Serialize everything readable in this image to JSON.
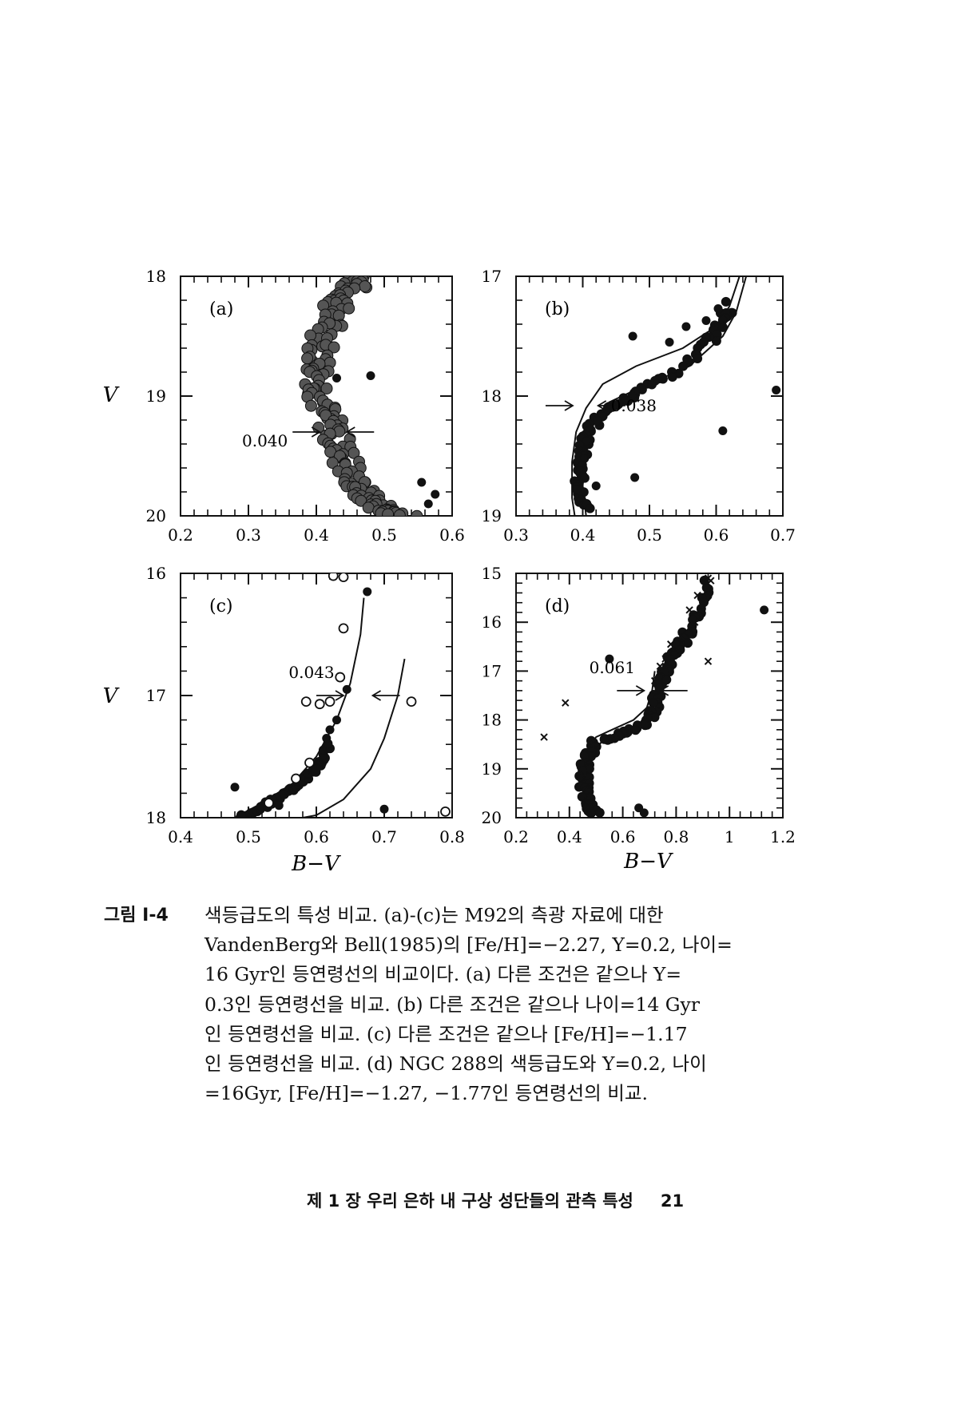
{
  "figure": {
    "v_label": "V",
    "bv_label": "B−V",
    "panels": [
      {
        "id": "a",
        "tag": "(a)",
        "xlim": [
          0.2,
          0.6
        ],
        "ylim": [
          20,
          18
        ],
        "xticks": [
          "0.2",
          "0.3",
          "0.4",
          "0.5",
          "0.6"
        ],
        "yticks": [
          "18",
          "19",
          "20"
        ],
        "width_label": "0.040",
        "width_at_v": 19.3,
        "width_left": 0.405,
        "width_right": 0.445,
        "ridge": [
          [
            0.47,
            18.0
          ],
          [
            0.45,
            18.1
          ],
          [
            0.43,
            18.25
          ],
          [
            0.415,
            18.45
          ],
          [
            0.405,
            18.7
          ],
          [
            0.405,
            18.9
          ],
          [
            0.41,
            19.1
          ],
          [
            0.425,
            19.3
          ],
          [
            0.44,
            19.5
          ],
          [
            0.455,
            19.7
          ],
          [
            0.475,
            19.85
          ],
          [
            0.5,
            19.95
          ],
          [
            0.53,
            20.0
          ]
        ],
        "ridge_halfwidth": 0.022,
        "outliers_filled": [
          [
            0.43,
            18.85
          ],
          [
            0.48,
            18.83
          ],
          [
            0.555,
            19.72
          ],
          [
            0.575,
            19.82
          ],
          [
            0.565,
            19.9
          ]
        ],
        "outliers_open": [],
        "crosses": [],
        "isochrones": []
      },
      {
        "id": "b",
        "tag": "(b)",
        "xlim": [
          0.3,
          0.7
        ],
        "ylim": [
          19,
          17
        ],
        "xticks": [
          "0.3",
          "0.4",
          "0.5",
          "0.6",
          "0.7"
        ],
        "yticks": [
          "17",
          "18",
          "19"
        ],
        "width_label": "0.038",
        "width_at_v": 18.08,
        "width_left": 0.385,
        "width_right": 0.423,
        "ridge": [
          [
            0.62,
            17.25
          ],
          [
            0.6,
            17.5
          ],
          [
            0.54,
            17.8
          ],
          [
            0.47,
            18.0
          ],
          [
            0.43,
            18.15
          ],
          [
            0.405,
            18.35
          ],
          [
            0.395,
            18.55
          ],
          [
            0.395,
            18.75
          ],
          [
            0.405,
            18.95
          ]
        ],
        "ridge_halfwidth": 0.008,
        "outliers_filled": [
          [
            0.475,
            17.5
          ],
          [
            0.53,
            17.55
          ],
          [
            0.555,
            17.42
          ],
          [
            0.585,
            17.37
          ],
          [
            0.603,
            17.27
          ],
          [
            0.69,
            17.95
          ],
          [
            0.61,
            18.29
          ],
          [
            0.478,
            18.68
          ],
          [
            0.39,
            18.78
          ],
          [
            0.42,
            18.75
          ]
        ],
        "outliers_open": [],
        "crosses": [],
        "isochrones": [
          [
            [
              0.635,
              17.0
            ],
            [
              0.62,
              17.25
            ],
            [
              0.6,
              17.42
            ],
            [
              0.55,
              17.6
            ],
            [
              0.48,
              17.75
            ],
            [
              0.43,
              17.9
            ],
            [
              0.405,
              18.1
            ],
            [
              0.39,
              18.3
            ],
            [
              0.384,
              18.55
            ],
            [
              0.384,
              18.85
            ],
            [
              0.388,
              19.0
            ]
          ],
          [
            [
              0.645,
              17.0
            ],
            [
              0.63,
              17.3
            ],
            [
              0.61,
              17.5
            ],
            [
              0.56,
              17.75
            ],
            [
              0.49,
              17.92
            ],
            [
              0.44,
              18.05
            ],
            [
              0.415,
              18.25
            ],
            [
              0.403,
              18.5
            ],
            [
              0.4,
              18.75
            ],
            [
              0.405,
              19.0
            ]
          ]
        ]
      },
      {
        "id": "c",
        "tag": "(c)",
        "xlim": [
          0.4,
          0.8
        ],
        "ylim": [
          18,
          16
        ],
        "xticks": [
          "0.4",
          "0.5",
          "0.6",
          "0.7",
          "0.8"
        ],
        "yticks": [
          "16",
          "17",
          "18"
        ],
        "width_label": "0.043",
        "width_at_v": 17.0,
        "width_left": 0.64,
        "width_right": 0.683,
        "ridge": [
          [
            0.49,
            18.0
          ],
          [
            0.53,
            17.88
          ],
          [
            0.57,
            17.75
          ],
          [
            0.6,
            17.6
          ],
          [
            0.62,
            17.4
          ]
        ],
        "ridge_halfwidth": 0.004,
        "outliers_filled": [
          [
            0.48,
            17.75
          ],
          [
            0.675,
            16.15
          ],
          [
            0.645,
            16.95
          ],
          [
            0.63,
            17.2
          ],
          [
            0.62,
            17.28
          ],
          [
            0.615,
            17.35
          ],
          [
            0.6,
            17.6
          ],
          [
            0.7,
            17.93
          ],
          [
            0.545,
            17.9
          ],
          [
            0.49,
            17.99
          ]
        ],
        "outliers_open": [
          [
            0.625,
            16.02
          ],
          [
            0.64,
            16.03
          ],
          [
            0.64,
            16.45
          ],
          [
            0.635,
            16.85
          ],
          [
            0.585,
            17.05
          ],
          [
            0.605,
            17.07
          ],
          [
            0.62,
            17.05
          ],
          [
            0.74,
            17.05
          ],
          [
            0.59,
            17.55
          ],
          [
            0.57,
            17.68
          ],
          [
            0.53,
            17.88
          ],
          [
            0.79,
            17.95
          ]
        ],
        "crosses": [],
        "isochrones": [
          [
            [
              0.67,
              16.2
            ],
            [
              0.665,
              16.5
            ],
            [
              0.65,
              16.9
            ],
            [
              0.63,
              17.2
            ],
            [
              0.6,
              17.5
            ],
            [
              0.565,
              17.72
            ],
            [
              0.52,
              17.88
            ],
            [
              0.48,
              18.0
            ]
          ],
          [
            [
              0.73,
              16.7
            ],
            [
              0.72,
              17.0
            ],
            [
              0.7,
              17.35
            ],
            [
              0.68,
              17.6
            ],
            [
              0.64,
              17.85
            ],
            [
              0.6,
              17.98
            ],
            [
              0.58,
              18.0
            ]
          ]
        ]
      },
      {
        "id": "d",
        "tag": "(d)",
        "xlim": [
          0.2,
          1.2
        ],
        "ylim": [
          20,
          15
        ],
        "xticks": [
          "0.2",
          "0.4",
          "0.6",
          "0.8",
          "1",
          "1.2"
        ],
        "yticks": [
          "15",
          "16",
          "17",
          "18",
          "19",
          "20"
        ],
        "width_label": "0.061",
        "width_at_v": 17.4,
        "width_left": 0.68,
        "width_right": 0.741,
        "ridge": [
          [
            0.92,
            15.2
          ],
          [
            0.86,
            16.1
          ],
          [
            0.8,
            16.6
          ],
          [
            0.76,
            17.0
          ],
          [
            0.73,
            17.5
          ],
          [
            0.7,
            18.0
          ],
          [
            0.62,
            18.25
          ],
          [
            0.5,
            18.45
          ],
          [
            0.46,
            18.8
          ],
          [
            0.455,
            19.3
          ],
          [
            0.465,
            19.7
          ],
          [
            0.5,
            19.95
          ]
        ],
        "ridge_halfwidth": 0.02,
        "outliers_filled": [
          [
            1.13,
            15.75
          ],
          [
            0.55,
            16.75
          ],
          [
            0.66,
            19.8
          ],
          [
            0.68,
            19.9
          ]
        ],
        "outliers_open": [],
        "crosses": [
          [
            0.92,
            15.1
          ],
          [
            0.93,
            15.15
          ],
          [
            0.88,
            15.45
          ],
          [
            0.9,
            15.55
          ],
          [
            0.85,
            15.75
          ],
          [
            0.87,
            16.0
          ],
          [
            0.82,
            16.3
          ],
          [
            0.78,
            16.45
          ],
          [
            0.76,
            16.75
          ],
          [
            0.74,
            16.9
          ],
          [
            0.72,
            17.2
          ],
          [
            0.92,
            16.8
          ],
          [
            0.385,
            17.65
          ],
          [
            0.305,
            18.35
          ]
        ],
        "isochrones": [
          [
            [
              0.72,
              17.0
            ],
            [
              0.71,
              17.4
            ],
            [
              0.69,
              17.75
            ],
            [
              0.64,
              18.0
            ],
            [
              0.56,
              18.2
            ],
            [
              0.5,
              18.35
            ],
            [
              0.47,
              18.6
            ],
            [
              0.455,
              19.0
            ],
            [
              0.455,
              19.4
            ],
            [
              0.46,
              19.8
            ]
          ],
          [
            [
              0.76,
              17.0
            ],
            [
              0.75,
              17.4
            ],
            [
              0.73,
              17.75
            ],
            [
              0.69,
              18.05
            ],
            [
              0.6,
              18.28
            ],
            [
              0.52,
              18.45
            ],
            [
              0.48,
              18.75
            ],
            [
              0.465,
              19.1
            ],
            [
              0.465,
              19.5
            ],
            [
              0.47,
              19.9
            ]
          ]
        ]
      }
    ]
  },
  "caption": {
    "label": "그림 I-4",
    "lines": [
      "색등급도의 특성 비교. (a)-(c)는 M92의 측광 자료에 대한",
      "VandenBerg와 Bell(1985)의 [Fe/H]=−2.27, Y=0.2, 나이=",
      "16 Gyr인 등연령선의 비교이다. (a) 다른 조건은 같으나 Y=",
      "0.3인 등연령선을 비교. (b) 다른 조건은 같으나 나이=14 Gyr",
      "인 등연령선을 비교. (c) 다른 조건은 같으나 [Fe/H]=−1.17",
      "인 등연령선을 비교. (d) NGC 288의 색등급도와 Y=0.2, 나이",
      "=16Gyr, [Fe/H]=−1.27, −1.77인 등연령선의 비교."
    ]
  },
  "footer": {
    "chapter": "제 1 장  우리 은하 내 구상 성단들의 관측 특성",
    "page": "21"
  }
}
